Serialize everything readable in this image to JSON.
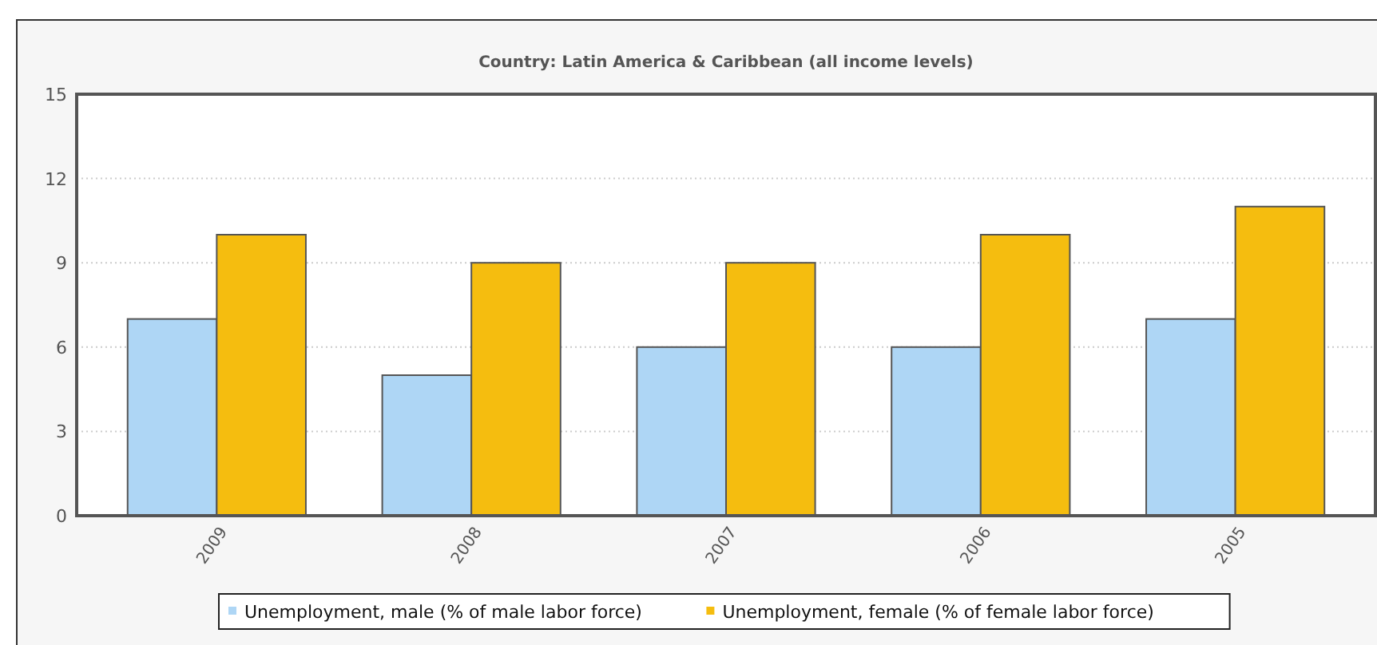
{
  "chart_data": {
    "type": "bar",
    "title": "Country: Latin America & Caribbean (all income levels)",
    "categories": [
      "2009",
      "2008",
      "2007",
      "2006",
      "2005"
    ],
    "series": [
      {
        "name": "Unemployment, male (% of male labor force)",
        "color": "#aed6f5",
        "values": [
          7,
          5,
          6,
          6,
          7
        ]
      },
      {
        "name": "Unemployment, female (% of female labor force)",
        "color": "#f5bd0f",
        "values": [
          10,
          9,
          9,
          10,
          11
        ]
      }
    ],
    "ylim": [
      0,
      15
    ],
    "yticks": [
      0,
      3,
      6,
      9,
      12,
      15
    ],
    "grid": "y",
    "legend": "bottom"
  }
}
